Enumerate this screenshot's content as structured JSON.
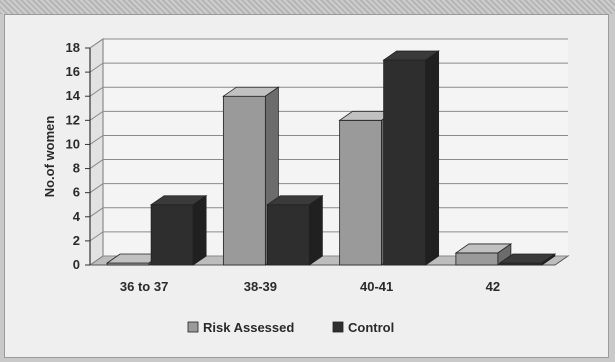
{
  "chart_data": {
    "type": "bar",
    "categories": [
      "36 to 37",
      "38-39",
      "40-41",
      "42"
    ],
    "series": [
      {
        "name": "Risk Assessed",
        "values": [
          0,
          14,
          12,
          1
        ],
        "color": "#9a9a9a"
      },
      {
        "name": "Control",
        "values": [
          5,
          5,
          17,
          0
        ],
        "color": "#2e2e2e"
      }
    ],
    "ylabel": "No.of women",
    "ylim": [
      0,
      18
    ],
    "yticks": [
      0,
      2,
      4,
      6,
      8,
      10,
      12,
      14,
      16,
      18
    ],
    "grid": true,
    "legend_position": "bottom",
    "style": "3d"
  }
}
